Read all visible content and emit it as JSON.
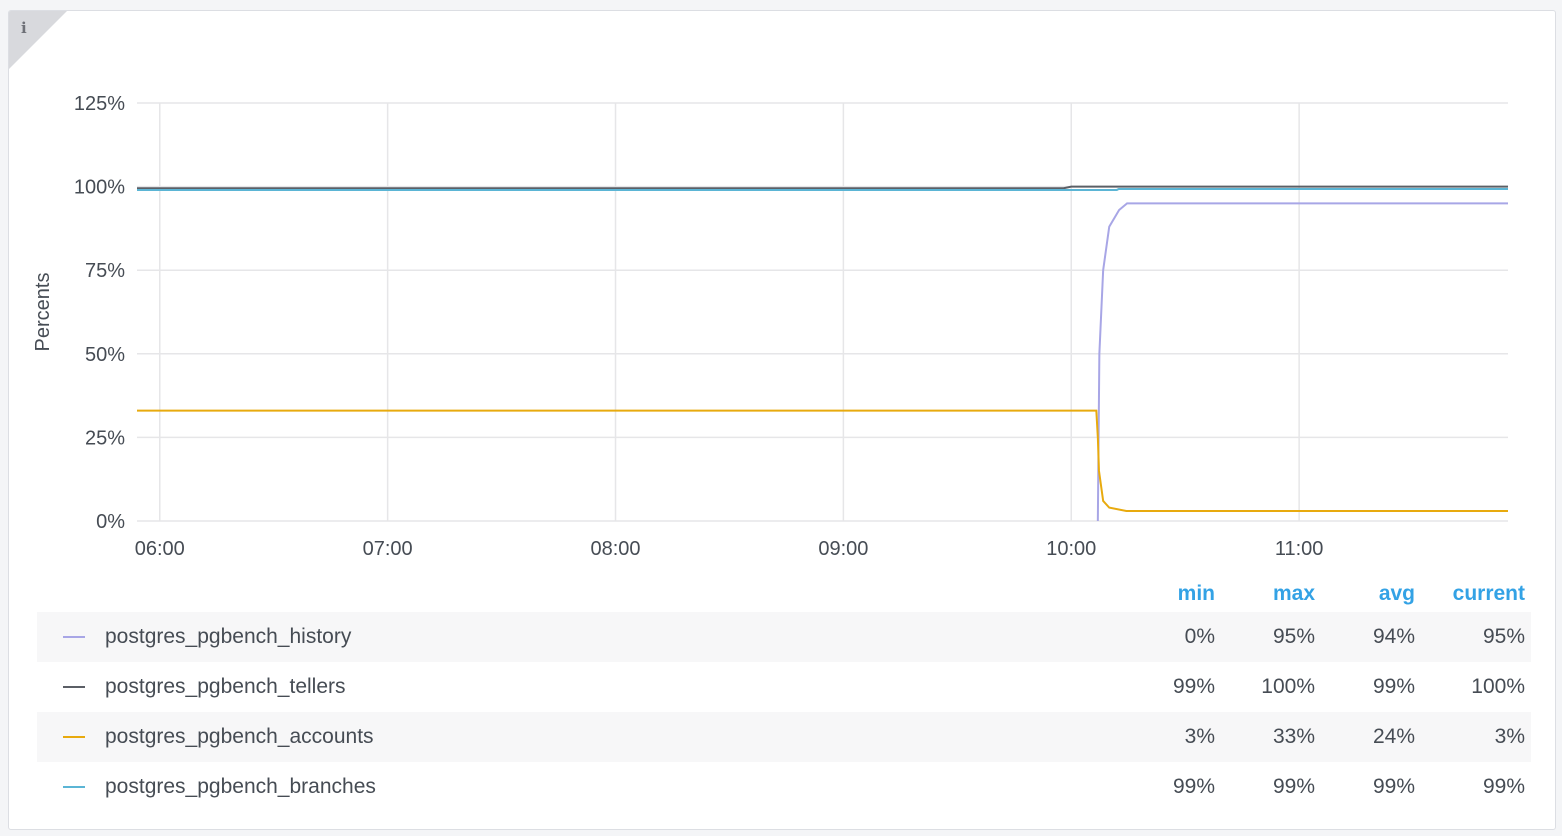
{
  "panel": {
    "info_icon": "info-icon"
  },
  "chart_data": {
    "type": "line",
    "ylabel": "Percents",
    "ylim": [
      0,
      125
    ],
    "yticks": [
      "0%",
      "25%",
      "50%",
      "75%",
      "100%",
      "125%"
    ],
    "xticks": [
      "06:00",
      "07:00",
      "08:00",
      "09:00",
      "10:00",
      "11:00"
    ],
    "xlim": [
      "05:54",
      "11:55"
    ],
    "grid": true,
    "legend_placement": "bottom",
    "legend_columns": [
      "min",
      "max",
      "avg",
      "current"
    ],
    "series": [
      {
        "name": "postgres_pgbench_history",
        "color": "#a8a6e6",
        "stats": [
          "0%",
          "95%",
          "94%",
          "95%"
        ],
        "points": [
          [
            "10:07:00",
            0
          ],
          [
            "10:07:24",
            50
          ],
          [
            "10:08:24",
            75
          ],
          [
            "10:10:00",
            88
          ],
          [
            "10:12:36",
            93
          ],
          [
            "10:14:42",
            95
          ],
          [
            "11:55:00",
            95
          ]
        ]
      },
      {
        "name": "postgres_pgbench_tellers",
        "color": "#5b5f66",
        "stats": [
          "99%",
          "100%",
          "99%",
          "100%"
        ],
        "points": [
          [
            "05:54:00",
            99.5
          ],
          [
            "09:58:00",
            99.5
          ],
          [
            "10:00:00",
            100
          ],
          [
            "11:55:00",
            100
          ]
        ]
      },
      {
        "name": "postgres_pgbench_accounts",
        "color": "#e8aa0e",
        "stats": [
          "3%",
          "33%",
          "24%",
          "3%"
        ],
        "points": [
          [
            "05:54:00",
            33
          ],
          [
            "10:06:36",
            33
          ],
          [
            "10:07:00",
            25
          ],
          [
            "10:07:18",
            15
          ],
          [
            "10:08:24",
            6
          ],
          [
            "10:10:00",
            4
          ],
          [
            "10:14:30",
            3
          ],
          [
            "11:55:00",
            3
          ]
        ]
      },
      {
        "name": "postgres_pgbench_branches",
        "color": "#5bb5d5",
        "stats": [
          "99%",
          "99%",
          "99%",
          "99%"
        ],
        "points": [
          [
            "05:54:00",
            99
          ],
          [
            "10:12:00",
            99
          ],
          [
            "10:12:30",
            99.3
          ],
          [
            "11:55:00",
            99.3
          ]
        ]
      }
    ]
  }
}
